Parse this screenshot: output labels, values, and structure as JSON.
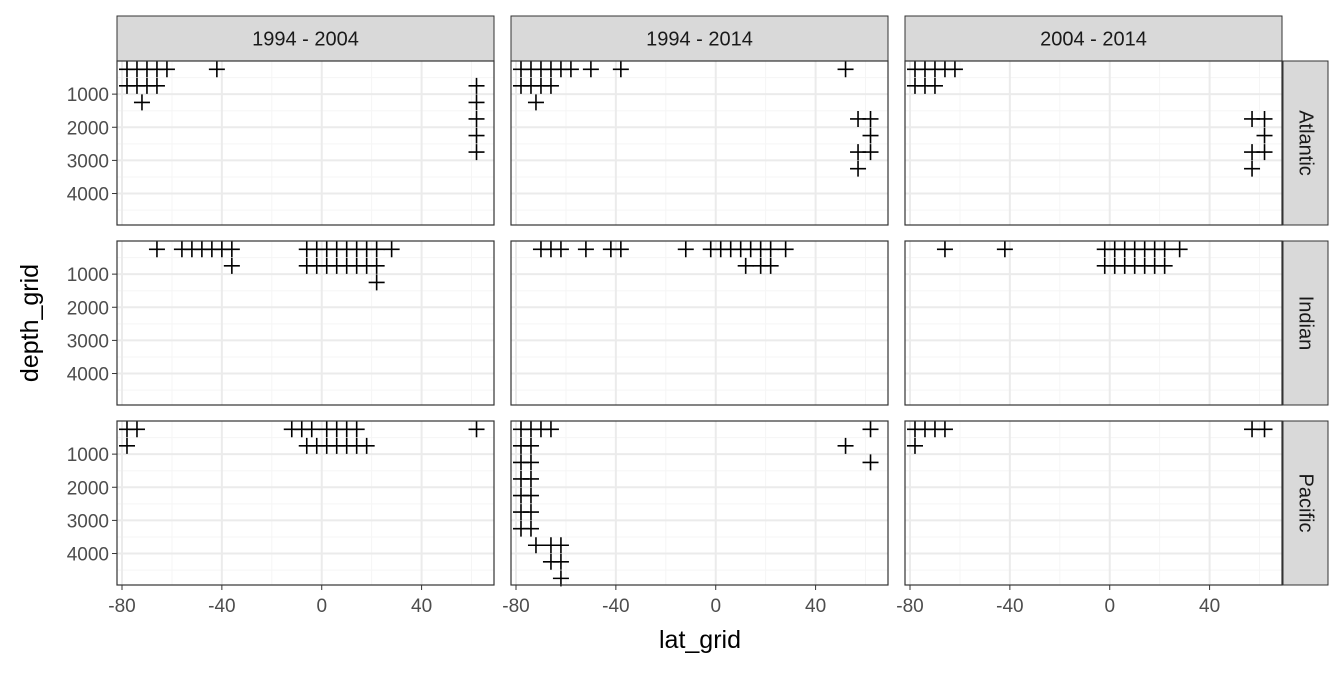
{
  "chart_data": {
    "type": "scatter",
    "marker": "plus",
    "facet_layout": "grid",
    "xlabel": "lat_grid",
    "ylabel": "depth_grid",
    "x_ticks": [
      -80,
      -40,
      0,
      40
    ],
    "x_tick_labels": [
      "-80",
      "-40",
      "0",
      "40"
    ],
    "y_ticks": [
      1000,
      2000,
      3000,
      4000
    ],
    "y_tick_labels": [
      "1000",
      "2000",
      "3000",
      "4000"
    ],
    "xlim": [
      -82,
      69
    ],
    "ylim": [
      4950,
      0
    ],
    "y_reversed": true,
    "grid": true,
    "legend": "none",
    "colors": {
      "strip_fill": "#d9d9d9",
      "grid_major": "#ebebeb",
      "grid_minor": "#f5f5f5",
      "panel_border": "#333333",
      "marker": "#000000",
      "axis_text": "#4d4d4d"
    },
    "col_facets": [
      "1994 - 2004",
      "1994 - 2014",
      "2004 - 2014"
    ],
    "row_facets": [
      "Atlantic",
      "Indian",
      "Pacific"
    ],
    "panels": [
      {
        "row": "Atlantic",
        "col": "1994 - 2004",
        "points": [
          [
            -78,
            250
          ],
          [
            -74,
            250
          ],
          [
            -70,
            250
          ],
          [
            -66,
            250
          ],
          [
            -62,
            250
          ],
          [
            -42,
            250
          ],
          [
            -78,
            750
          ],
          [
            -74,
            750
          ],
          [
            -70,
            750
          ],
          [
            -66,
            750
          ],
          [
            -72,
            1250
          ],
          [
            62,
            750
          ],
          [
            62,
            1250
          ],
          [
            62,
            1750
          ],
          [
            62,
            2250
          ],
          [
            62,
            2750
          ]
        ]
      },
      {
        "row": "Atlantic",
        "col": "1994 - 2014",
        "points": [
          [
            -78,
            250
          ],
          [
            -74,
            250
          ],
          [
            -70,
            250
          ],
          [
            -66,
            250
          ],
          [
            -62,
            250
          ],
          [
            -58,
            250
          ],
          [
            -50,
            250
          ],
          [
            -38,
            250
          ],
          [
            52,
            250
          ],
          [
            -78,
            750
          ],
          [
            -74,
            750
          ],
          [
            -70,
            750
          ],
          [
            -66,
            750
          ],
          [
            -72,
            1250
          ],
          [
            57,
            1750
          ],
          [
            62,
            1750
          ],
          [
            62,
            2250
          ],
          [
            57,
            2750
          ],
          [
            62,
            2750
          ],
          [
            57,
            3250
          ]
        ]
      },
      {
        "row": "Atlantic",
        "col": "2004 - 2014",
        "points": [
          [
            -78,
            250
          ],
          [
            -74,
            250
          ],
          [
            -70,
            250
          ],
          [
            -66,
            250
          ],
          [
            -62,
            250
          ],
          [
            -78,
            750
          ],
          [
            -74,
            750
          ],
          [
            -70,
            750
          ],
          [
            57,
            1750
          ],
          [
            62,
            1750
          ],
          [
            62,
            2250
          ],
          [
            57,
            2750
          ],
          [
            62,
            2750
          ],
          [
            57,
            3250
          ]
        ]
      },
      {
        "row": "Indian",
        "col": "1994 - 2004",
        "points": [
          [
            -66,
            250
          ],
          [
            -56,
            250
          ],
          [
            -52,
            250
          ],
          [
            -48,
            250
          ],
          [
            -44,
            250
          ],
          [
            -40,
            250
          ],
          [
            -36,
            250
          ],
          [
            -6,
            250
          ],
          [
            -2,
            250
          ],
          [
            2,
            250
          ],
          [
            6,
            250
          ],
          [
            10,
            250
          ],
          [
            14,
            250
          ],
          [
            18,
            250
          ],
          [
            22,
            250
          ],
          [
            28,
            250
          ],
          [
            -36,
            750
          ],
          [
            -6,
            750
          ],
          [
            -2,
            750
          ],
          [
            2,
            750
          ],
          [
            6,
            750
          ],
          [
            10,
            750
          ],
          [
            14,
            750
          ],
          [
            18,
            750
          ],
          [
            22,
            750
          ],
          [
            22,
            1250
          ]
        ]
      },
      {
        "row": "Indian",
        "col": "1994 - 2014",
        "points": [
          [
            -70,
            250
          ],
          [
            -66,
            250
          ],
          [
            -62,
            250
          ],
          [
            -52,
            250
          ],
          [
            -42,
            250
          ],
          [
            -38,
            250
          ],
          [
            -12,
            250
          ],
          [
            -2,
            250
          ],
          [
            2,
            250
          ],
          [
            6,
            250
          ],
          [
            10,
            250
          ],
          [
            14,
            250
          ],
          [
            18,
            250
          ],
          [
            22,
            250
          ],
          [
            28,
            250
          ],
          [
            12,
            750
          ],
          [
            18,
            750
          ],
          [
            22,
            750
          ]
        ]
      },
      {
        "row": "Indian",
        "col": "2004 - 2014",
        "points": [
          [
            -66,
            250
          ],
          [
            -42,
            250
          ],
          [
            -2,
            250
          ],
          [
            2,
            250
          ],
          [
            6,
            250
          ],
          [
            10,
            250
          ],
          [
            14,
            250
          ],
          [
            18,
            250
          ],
          [
            22,
            250
          ],
          [
            28,
            250
          ],
          [
            -2,
            750
          ],
          [
            2,
            750
          ],
          [
            6,
            750
          ],
          [
            10,
            750
          ],
          [
            14,
            750
          ],
          [
            18,
            750
          ],
          [
            22,
            750
          ]
        ]
      },
      {
        "row": "Pacific",
        "col": "1994 - 2004",
        "points": [
          [
            -78,
            250
          ],
          [
            -74,
            250
          ],
          [
            -12,
            250
          ],
          [
            -8,
            250
          ],
          [
            -4,
            250
          ],
          [
            2,
            250
          ],
          [
            6,
            250
          ],
          [
            10,
            250
          ],
          [
            14,
            250
          ],
          [
            62,
            250
          ],
          [
            -78,
            750
          ],
          [
            -6,
            750
          ],
          [
            -2,
            750
          ],
          [
            2,
            750
          ],
          [
            6,
            750
          ],
          [
            10,
            750
          ],
          [
            14,
            750
          ],
          [
            18,
            750
          ]
        ]
      },
      {
        "row": "Pacific",
        "col": "1994 - 2014",
        "points": [
          [
            -78,
            250
          ],
          [
            -74,
            250
          ],
          [
            -70,
            250
          ],
          [
            -66,
            250
          ],
          [
            62,
            250
          ],
          [
            -78,
            750
          ],
          [
            -74,
            750
          ],
          [
            52,
            750
          ],
          [
            -78,
            1250
          ],
          [
            -74,
            1250
          ],
          [
            62,
            1250
          ],
          [
            -78,
            1750
          ],
          [
            -74,
            1750
          ],
          [
            -78,
            2250
          ],
          [
            -74,
            2250
          ],
          [
            -78,
            2750
          ],
          [
            -74,
            2750
          ],
          [
            -78,
            3250
          ],
          [
            -74,
            3250
          ],
          [
            -72,
            3750
          ],
          [
            -66,
            3750
          ],
          [
            -62,
            3750
          ],
          [
            -66,
            4250
          ],
          [
            -62,
            4250
          ],
          [
            -62,
            4750
          ]
        ]
      },
      {
        "row": "Pacific",
        "col": "2004 - 2014",
        "points": [
          [
            -78,
            250
          ],
          [
            -74,
            250
          ],
          [
            -70,
            250
          ],
          [
            -66,
            250
          ],
          [
            -78,
            750
          ],
          [
            57,
            250
          ],
          [
            62,
            250
          ]
        ]
      }
    ]
  }
}
